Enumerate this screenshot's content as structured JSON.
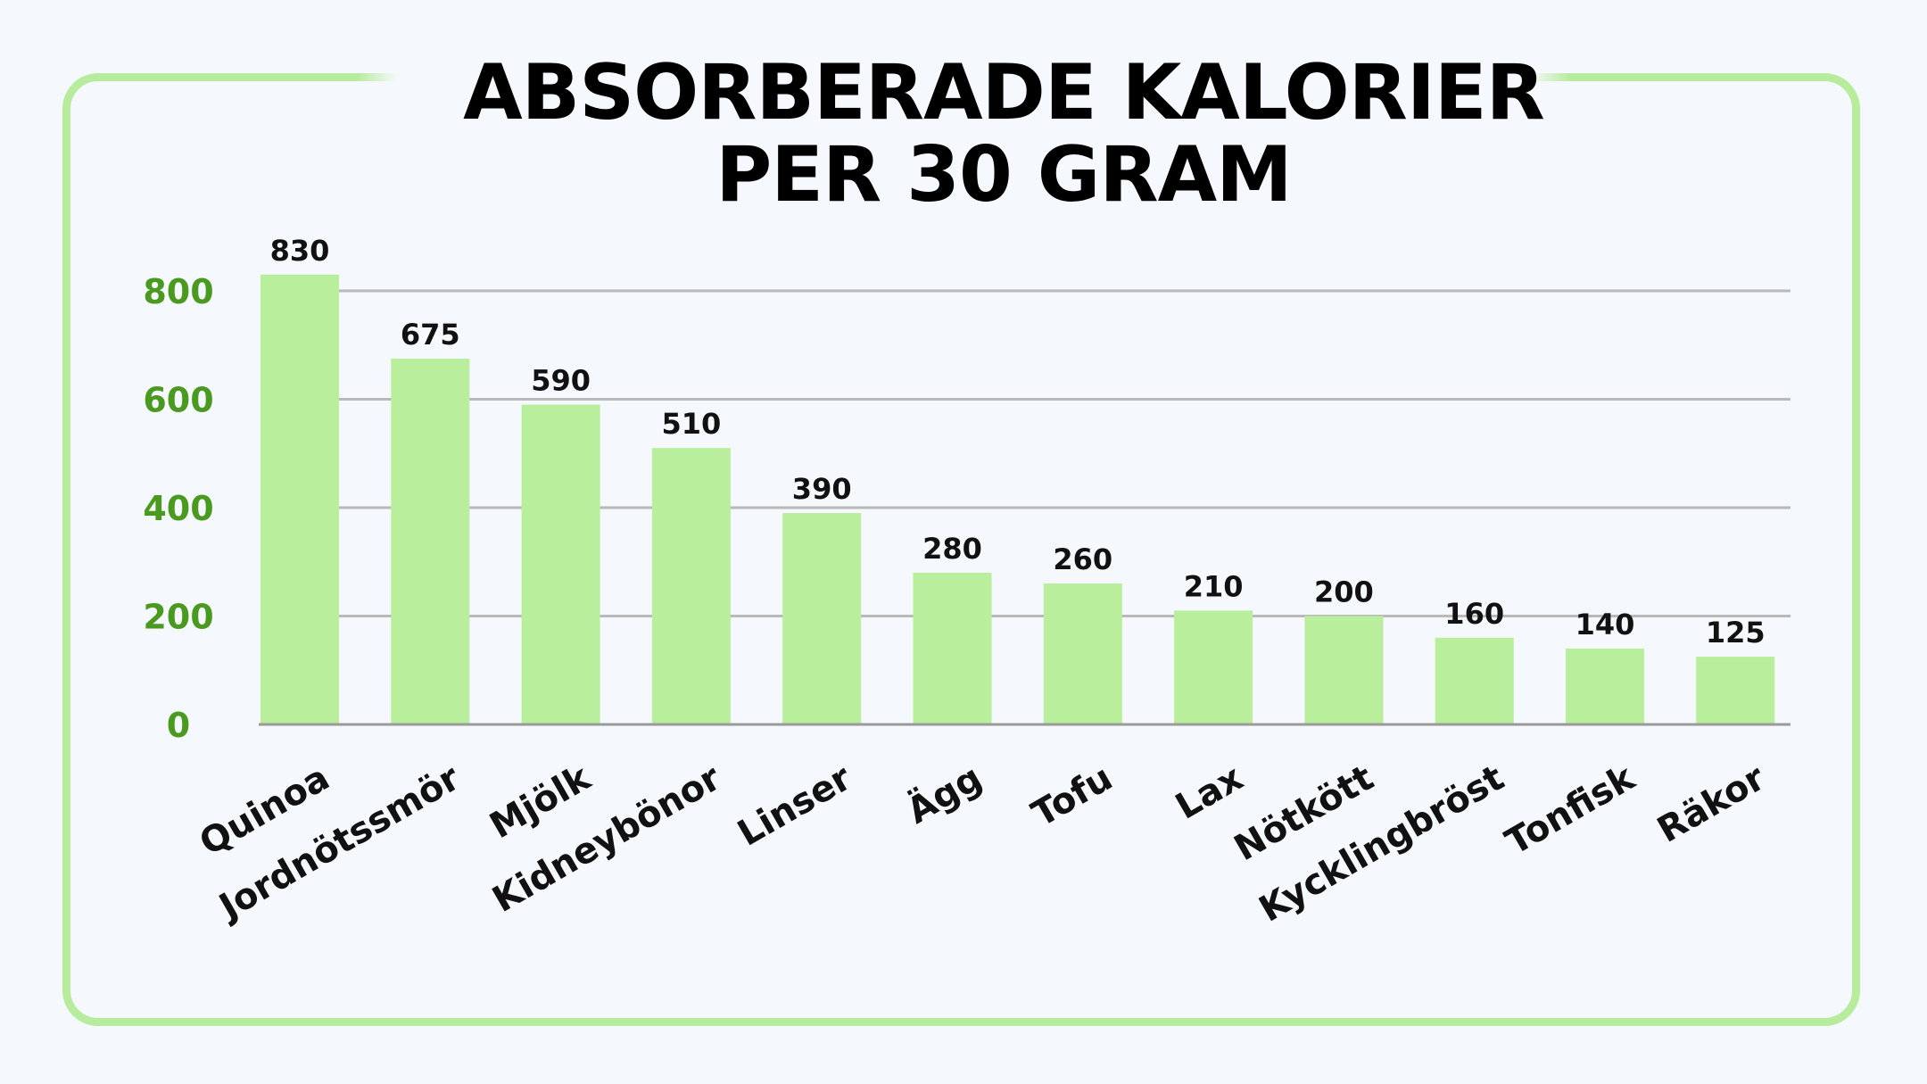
{
  "chart_data": {
    "type": "bar",
    "title_lines": [
      "ABSORBERADE KALORIER",
      "PER 30 GRAM"
    ],
    "categories": [
      "Quinoa",
      "Jordnötssmör",
      "Mjölk",
      "Kidneybönor",
      "Linser",
      "Ägg",
      "Tofu",
      "Lax",
      "Nötkött",
      "Kycklingbröst",
      "Tonfisk",
      "Räkor"
    ],
    "values": [
      830,
      675,
      590,
      510,
      390,
      280,
      260,
      210,
      200,
      160,
      140,
      125
    ],
    "data_labels": [
      "830",
      "675",
      "590",
      "510",
      "390",
      "280",
      "260",
      "210",
      "200",
      "160",
      "140",
      "125"
    ],
    "y_ticks": [
      0,
      200,
      400,
      600,
      800
    ],
    "ylim": [
      0,
      800
    ],
    "grid": true,
    "legend": "none",
    "colors": {
      "bar": "#b8ee9c",
      "frame": "#b6ec9b",
      "tick_label": "#4a9a1f",
      "grid": "#b9b9b9",
      "text": "#111111"
    }
  }
}
